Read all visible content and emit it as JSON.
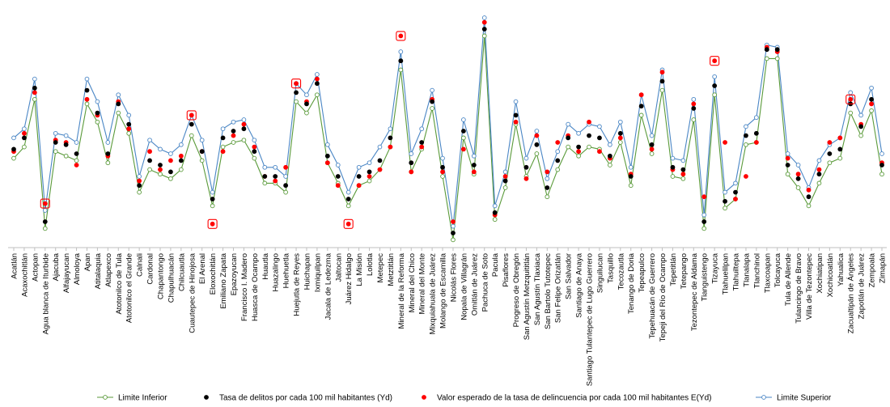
{
  "chart_data": {
    "type": "line",
    "title": "",
    "xlabel": "",
    "ylabel": "",
    "ylim": [
      0,
      100
    ],
    "grid": false,
    "legend_position": "bottom",
    "categories": [
      "Acatlán",
      "Acaxochitlán",
      "Actopan",
      "Agua blanca de Iturbide",
      "Ajacuba",
      "Alfajayucan",
      "Almoloya",
      "Apan",
      "Atitalaquia",
      "Atlapexco",
      "Atotonilco de Tula",
      "Atotonilco el Grande",
      "Calnali",
      "Cardonal",
      "Chapantongo",
      "Chapulhuacán",
      "Chilcuautla",
      "Cuautepec de Hinojosa",
      "El Arenal",
      "Eloxochitlán",
      "Emiliano Zapata",
      "Epazoyucan",
      "Francisco I. Madero",
      "Huasca de Ocampo",
      "Huautla",
      "Huazalingo",
      "Huehuetla",
      "Huejutla de Reyes",
      "Huichapan",
      "Ixmiquilpan",
      "Jacala de Ledezma",
      "Jaltocan",
      "Juárez Hidalgo",
      "La Misión",
      "Lolotla",
      "Metepec",
      "Metztitlán",
      "Mineral de la Reforma",
      "Mineral del Chico",
      "Mineral del Monte",
      "Mixquiahuala de Juárez",
      "Molango de Escamilla",
      "Nicolás Flores",
      "Nopala de Villagrán",
      "Omitlán de Juárez",
      "Pachuca de Soto",
      "Pacula",
      "Pisaflores",
      "Progreso de Obregón",
      "San Agustín Metzquititlán",
      "San Agustín Tlaxiaca",
      "San Bartolo Tutotepec",
      "San Felipe Orizatlán",
      "San Salvador",
      "Santiago de Anaya",
      "Santiago Tulantepec de Lugo Guerrero",
      "Singuilucan",
      "Tasquillo",
      "Tecozautla",
      "Tenango de Doria",
      "Tepeapulco",
      "Tepehuacán de Guerrero",
      "Tepeji del Río de Ocampo",
      "Tepetitlán",
      "Tetepango",
      "Tezontepec de Aldama",
      "Tianguistengo",
      "Tizayuca",
      "Tlahuelilpan",
      "Tlahuiltepa",
      "Tlanalapa",
      "Tlanchinol",
      "Tlaxcoapan",
      "Tolcayuca",
      "Tula de Allende",
      "Tulancingo de Bravo",
      "Villa de Tezontepec",
      "Xochiatipan",
      "Xochicoatlán",
      "Yahualica",
      "Zacualtipán de Ángeles",
      "Zapotlán de Juárez",
      "Zempoala",
      "Zimapán"
    ],
    "series": [
      {
        "name": "Limite Inferior",
        "marker": "open-circle",
        "color": "#5a9a3a",
        "values": [
          38,
          43,
          64,
          7,
          41,
          39,
          37,
          62,
          54,
          36,
          58,
          49,
          23,
          33,
          31,
          29,
          33,
          48,
          37,
          17,
          43,
          45,
          46,
          38,
          27,
          27,
          23,
          63,
          58,
          66,
          36,
          27,
          17,
          26,
          28,
          33,
          43,
          77,
          32,
          42,
          60,
          30,
          2,
          47,
          31,
          92,
          11,
          25,
          53,
          30,
          40,
          21,
          33,
          43,
          39,
          43,
          42,
          35,
          45,
          26,
          57,
          40,
          68,
          30,
          29,
          55,
          7,
          66,
          16,
          20,
          44,
          45,
          82,
          82,
          31,
          25,
          17,
          27,
          36,
          38,
          58,
          48,
          59,
          31
        ]
      },
      {
        "name": "Tasa de delitos por cada 100 mil habitantes (Yd)",
        "marker": "filled-dot",
        "color": "#000000",
        "values": [
          42,
          47,
          69,
          10,
          45,
          44,
          40,
          68,
          58,
          40,
          62,
          53,
          26,
          37,
          35,
          32,
          37,
          53,
          41,
          20,
          47,
          50,
          51,
          41,
          30,
          30,
          26,
          67,
          62,
          71,
          39,
          30,
          20,
          30,
          32,
          37,
          47,
          81,
          36,
          45,
          63,
          34,
          5,
          50,
          35,
          95,
          14,
          28,
          57,
          34,
          44,
          25,
          37,
          47,
          43,
          48,
          47,
          39,
          49,
          30,
          61,
          44,
          72,
          34,
          33,
          60,
          10,
          70,
          19,
          23,
          48,
          49,
          86,
          86,
          35,
          29,
          21,
          31,
          40,
          42,
          62,
          52,
          64,
          35
        ]
      },
      {
        "name": "Valor esperado de la tasa de delincuencia por cada 100 mil habitantes E(Yd)",
        "marker": "red-dot",
        "color": "#ff0000",
        "values": [
          41,
          49,
          67,
          18,
          46,
          45,
          35,
          64,
          57,
          39,
          63,
          51,
          28,
          41,
          33,
          37,
          39,
          57,
          41,
          9,
          41,
          48,
          53,
          43,
          30,
          28,
          34,
          71,
          63,
          73,
          36,
          26,
          9,
          26,
          30,
          33,
          43,
          92,
          32,
          43,
          64,
          32,
          10,
          42,
          32,
          98,
          13,
          30,
          54,
          29,
          48,
          32,
          45,
          48,
          41,
          54,
          41,
          38,
          47,
          31,
          66,
          42,
          76,
          33,
          31,
          62,
          21,
          81,
          45,
          20,
          30,
          45,
          87,
          85,
          38,
          31,
          24,
          33,
          45,
          47,
          64,
          53,
          62,
          36
        ]
      },
      {
        "name": "Limite Superior",
        "marker": "open-circle",
        "color": "#4a86c5",
        "values": [
          47,
          51,
          73,
          15,
          49,
          48,
          45,
          73,
          63,
          45,
          66,
          57,
          30,
          46,
          42,
          40,
          44,
          57,
          46,
          23,
          51,
          54,
          55,
          46,
          34,
          34,
          30,
          71,
          66,
          75,
          44,
          35,
          23,
          34,
          36,
          43,
          51,
          85,
          40,
          51,
          68,
          38,
          8,
          55,
          39,
          100,
          17,
          32,
          63,
          38,
          50,
          29,
          41,
          53,
          49,
          53,
          52,
          44,
          54,
          34,
          66,
          48,
          77,
          38,
          37,
          64,
          13,
          74,
          23,
          27,
          52,
          56,
          88,
          87,
          40,
          35,
          25,
          37,
          44,
          47,
          67,
          57,
          69,
          40
        ]
      }
    ],
    "highlighted": [
      "Agua blanca de Iturbide",
      "Cuautepec de Hinojosa",
      "Eloxochitlán",
      "Huejutla de Reyes",
      "Juárez Hidalgo",
      "Mineral de la Reforma",
      "Tizayuca",
      "Zacualtipán de Ángeles"
    ],
    "highlighted_marker": "red-square-box"
  },
  "legend": [
    {
      "label": "Limite Inferior",
      "key": "lower"
    },
    {
      "label": "Tasa de delitos por cada 100 mil habitantes (Yd)",
      "key": "rate"
    },
    {
      "label": "Valor esperado de la tasa de delincuencia por cada 100 mil habitantes E(Yd)",
      "key": "expected"
    },
    {
      "label": "Limite Superior",
      "key": "upper"
    }
  ]
}
